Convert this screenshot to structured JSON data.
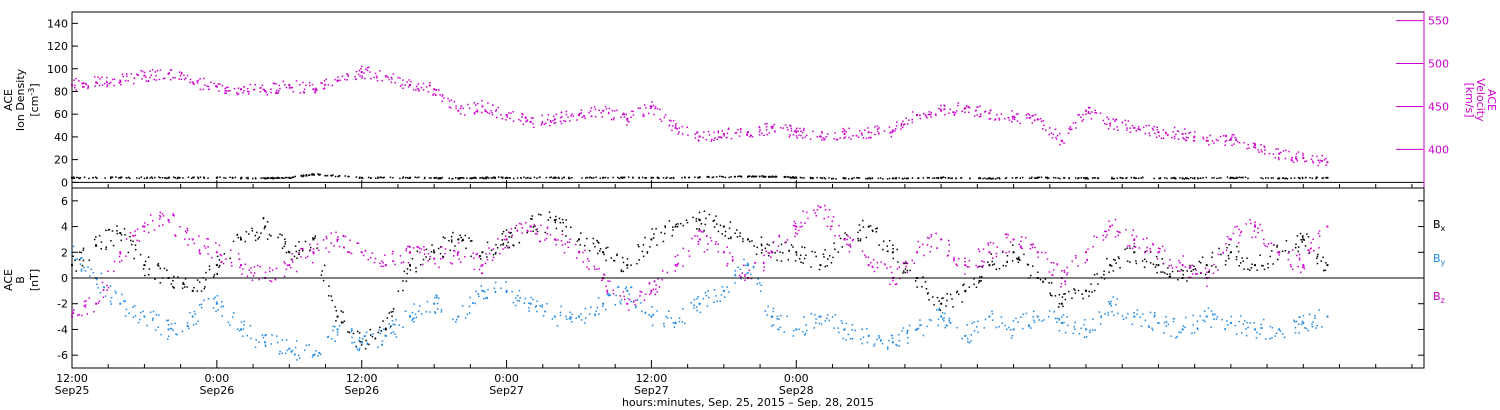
{
  "chart_data": [
    {
      "type": "scatter",
      "panel": "top",
      "ylabel_lines": [
        "ACE",
        "Ion Density"
      ],
      "ylabel_unit": "[cm",
      "ylabel_unit_sup": "-3",
      "ylabel_unit_end": "]",
      "ylim": [
        -5,
        150
      ],
      "yticks": [
        0,
        20,
        40,
        60,
        80,
        100,
        120,
        140
      ],
      "y2label_lines": [
        "ACE",
        "Velocity"
      ],
      "y2label_unit": "[km/s]",
      "y2lim": [
        355,
        560
      ],
      "y2ticks": [
        400,
        450,
        500,
        550
      ],
      "grid": false,
      "series": [
        {
          "name": "",
          "axis": "left",
          "color": "#000000",
          "x": [
            0,
            4,
            8,
            12,
            16,
            18,
            20,
            24,
            28,
            32,
            34,
            36,
            40,
            44,
            48,
            52,
            56,
            58,
            60,
            64,
            68,
            72,
            76,
            80,
            84,
            88,
            92,
            96,
            100,
            104
          ],
          "y": [
            4,
            4,
            4,
            4,
            3.5,
            4,
            7,
            4,
            4,
            3.5,
            4,
            4,
            4,
            4,
            4,
            4.5,
            5,
            5,
            4,
            3.5,
            3.5,
            4,
            3.5,
            4,
            3.5,
            4,
            3.5,
            4,
            3.5,
            4
          ]
        },
        {
          "name": "",
          "axis": "right",
          "color": "#cc00cc",
          "x": [
            0,
            2,
            4,
            6,
            8,
            10,
            12,
            14,
            16,
            18,
            20,
            22,
            24,
            26,
            28,
            30,
            32,
            34,
            36,
            38,
            40,
            42,
            44,
            46,
            48,
            50,
            52,
            54,
            56,
            58,
            60,
            62,
            64,
            66,
            68,
            70,
            72,
            74,
            76,
            78,
            80,
            82,
            84,
            86,
            88,
            90,
            92,
            94,
            96,
            98,
            100,
            102,
            104
          ],
          "y": [
            475,
            478,
            480,
            486,
            488,
            478,
            473,
            470,
            468,
            475,
            470,
            480,
            490,
            485,
            475,
            470,
            445,
            450,
            440,
            432,
            435,
            440,
            445,
            435,
            450,
            425,
            415,
            418,
            420,
            425,
            420,
            415,
            418,
            420,
            422,
            440,
            445,
            448,
            442,
            438,
            435,
            410,
            445,
            430,
            425,
            420,
            418,
            410,
            412,
            405,
            395,
            390,
            385
          ]
        }
      ]
    },
    {
      "type": "scatter",
      "panel": "bottom",
      "ylabel_lines": [
        "ACE",
        "B"
      ],
      "ylabel_unit": "[nT]",
      "ylim": [
        -7,
        7
      ],
      "yticks": [
        -6,
        -4,
        -2,
        0,
        2,
        4,
        6
      ],
      "grid": false,
      "legend": "right",
      "series": [
        {
          "name": "B",
          "sub": "x",
          "color": "#000000",
          "x": [
            0,
            2,
            4,
            6,
            8,
            10,
            12,
            14,
            16,
            18,
            20,
            22,
            24,
            26,
            28,
            30,
            32,
            34,
            36,
            38,
            40,
            42,
            44,
            46,
            48,
            50,
            52,
            54,
            56,
            58,
            60,
            62,
            64,
            66,
            68,
            70,
            72,
            74,
            76,
            78,
            80,
            82,
            84,
            86,
            88,
            90,
            92,
            94,
            96,
            98,
            100,
            102,
            104
          ],
          "y": [
            1,
            2.5,
            3.5,
            1,
            0,
            -1,
            1,
            3,
            4,
            2,
            3,
            -3,
            -5,
            -4,
            1,
            2,
            3,
            2,
            3,
            4,
            4.5,
            3,
            2,
            1,
            3,
            4,
            4.5,
            4,
            3,
            2,
            2,
            1,
            3,
            4,
            2,
            0,
            -2,
            -1,
            1,
            2,
            0,
            -2,
            -1,
            1,
            2,
            1,
            0,
            1,
            2,
            1,
            2,
            3,
            1
          ]
        },
        {
          "name": "B",
          "sub": "y",
          "color": "#1e88e5",
          "x": [
            0,
            2,
            4,
            6,
            8,
            10,
            12,
            14,
            16,
            18,
            20,
            22,
            24,
            26,
            28,
            30,
            32,
            34,
            36,
            38,
            40,
            42,
            44,
            46,
            48,
            50,
            52,
            54,
            56,
            58,
            60,
            62,
            64,
            66,
            68,
            70,
            72,
            74,
            76,
            78,
            80,
            82,
            84,
            86,
            88,
            90,
            92,
            94,
            96,
            98,
            100,
            102,
            104
          ],
          "y": [
            2,
            0,
            -2,
            -3,
            -4,
            -3,
            -2,
            -4,
            -5,
            -5.5,
            -6,
            -4,
            -5,
            -4.5,
            -3,
            -2,
            -3,
            -1,
            -1,
            -2,
            -3,
            -3,
            -2,
            -1,
            -3,
            -3.5,
            -2,
            -1,
            1,
            -3,
            -4,
            -3,
            -4,
            -4.5,
            -5,
            -4,
            -3,
            -4.5,
            -3,
            -4,
            -3,
            -3.5,
            -4,
            -2,
            -3,
            -3.5,
            -4,
            -3,
            -3.5,
            -4,
            -4,
            -3.5,
            -3
          ]
        },
        {
          "name": "B",
          "sub": "z",
          "color": "#cc00cc",
          "x": [
            0,
            2,
            4,
            6,
            8,
            10,
            12,
            14,
            16,
            18,
            20,
            22,
            24,
            26,
            28,
            30,
            32,
            34,
            36,
            38,
            40,
            42,
            44,
            46,
            48,
            50,
            52,
            54,
            56,
            58,
            60,
            62,
            64,
            66,
            68,
            70,
            72,
            74,
            76,
            78,
            80,
            82,
            84,
            86,
            88,
            90,
            92,
            94,
            96,
            98,
            100,
            102,
            104
          ],
          "y": [
            -3,
            -2,
            2,
            4,
            4.5,
            3,
            2,
            1,
            0,
            1,
            2,
            3,
            2,
            1,
            2,
            1.5,
            2,
            1,
            3,
            4,
            3,
            2,
            0,
            -2,
            -1,
            1,
            3,
            2,
            0,
            2,
            4,
            5.5,
            3,
            1,
            0,
            2,
            3,
            1,
            2,
            3,
            2,
            0,
            2,
            4,
            3,
            2,
            1,
            0,
            3,
            4,
            2,
            1,
            4
          ]
        }
      ]
    }
  ],
  "x_axis": {
    "unit": "hours since 2015-09-25 12:00",
    "range": [
      0,
      112
    ],
    "ticks": [
      {
        "x": 0,
        "time": "12:00",
        "date": "Sep25"
      },
      {
        "x": 12,
        "time": "0:00",
        "date": "Sep26"
      },
      {
        "x": 24,
        "time": "12:00",
        "date": "Sep26"
      },
      {
        "x": 36,
        "time": "0:00",
        "date": "Sep27"
      },
      {
        "x": 48,
        "time": "12:00",
        "date": "Sep27"
      },
      {
        "x": 60,
        "time": "0:00",
        "date": "Sep28"
      }
    ],
    "label": "hours:minutes, Sep. 25, 2015 – Sep. 28, 2015"
  }
}
